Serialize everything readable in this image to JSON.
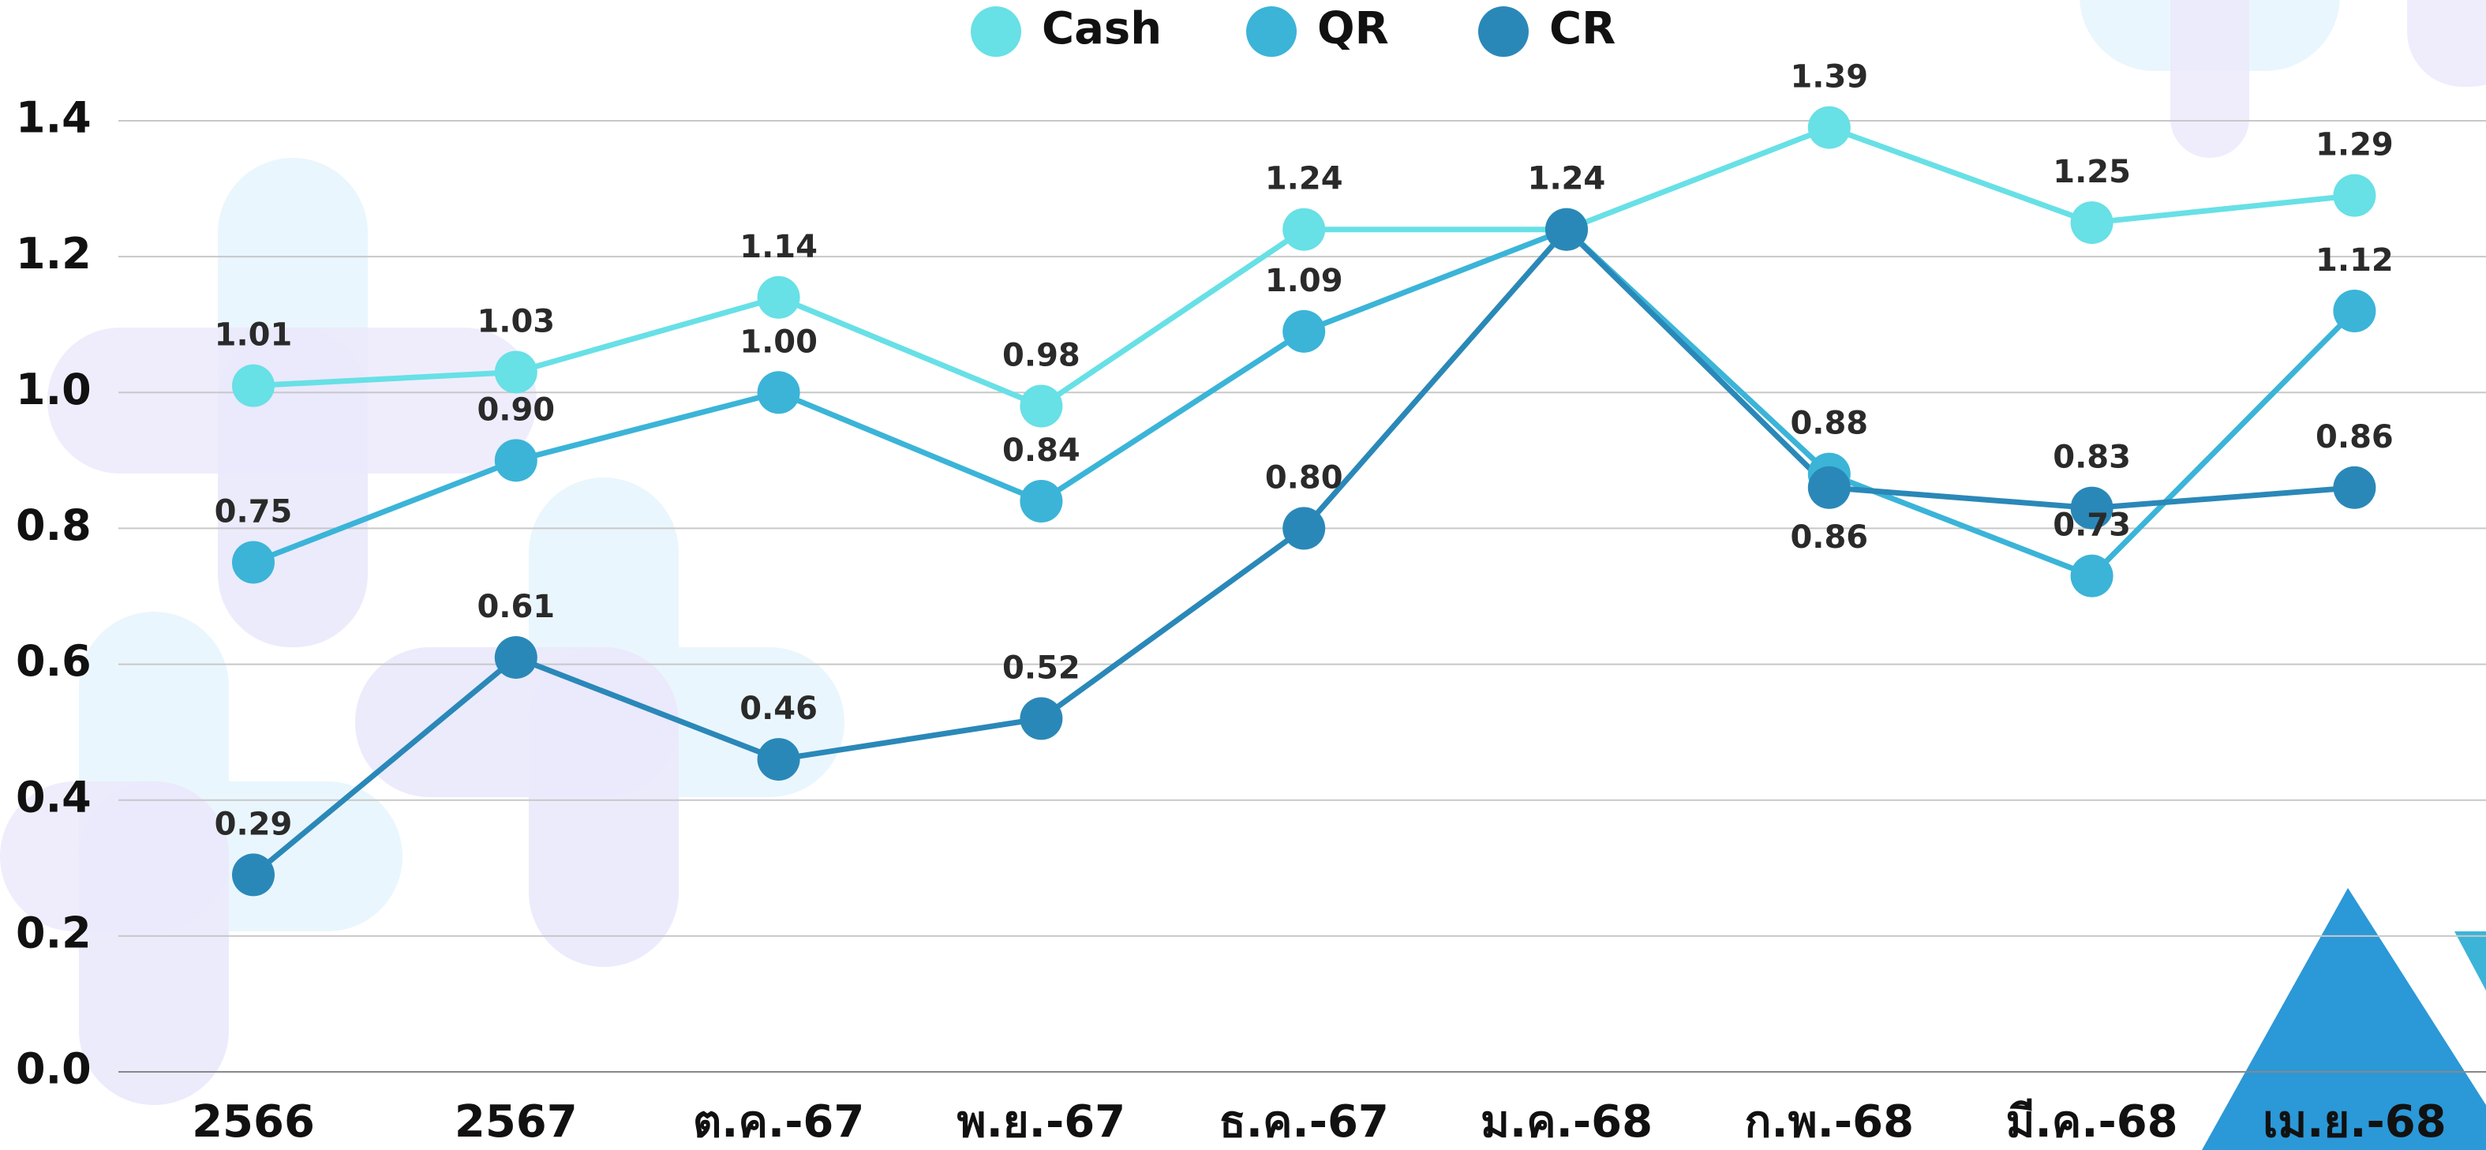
{
  "chart_data": {
    "type": "line",
    "categories": [
      "2566",
      "2567",
      "ต.ค.-67",
      "พ.ย.-67",
      "ธ.ค.-67",
      "ม.ค.-68",
      "ก.พ.-68",
      "มี.ค.-68",
      "เม.ย.-68"
    ],
    "series": [
      {
        "name": "Cash",
        "color": "#67e0e6",
        "values": [
          1.01,
          1.03,
          1.14,
          0.98,
          1.24,
          1.24,
          1.39,
          1.25,
          1.29
        ],
        "value_labels": [
          "1.01",
          "1.03",
          "1.14",
          "0.98",
          "1.24",
          "1.24",
          "1.39",
          "1.25",
          "1.29"
        ]
      },
      {
        "name": "QR",
        "color": "#3bb4d8",
        "values": [
          0.75,
          0.9,
          1.0,
          0.84,
          1.09,
          1.24,
          0.88,
          0.73,
          1.12
        ],
        "value_labels": [
          "0.75",
          "0.90",
          "1.00",
          "0.84",
          "1.09",
          "1.24",
          "0.88",
          "0.73",
          "1.12"
        ]
      },
      {
        "name": "CR",
        "color": "#2a88b8",
        "values": [
          0.29,
          0.61,
          0.46,
          0.52,
          0.8,
          1.24,
          0.86,
          0.83,
          0.86
        ],
        "value_labels": [
          "0.29",
          "0.61",
          "0.46",
          "0.52",
          "0.80",
          "1.24",
          "0.86",
          "0.83",
          "0.86"
        ]
      }
    ],
    "ylim": [
      0,
      1.4
    ],
    "yticks": [
      {
        "value": 0,
        "label": "0.0"
      },
      0.2,
      0.4,
      0.6,
      0.8,
      {
        "value": 1,
        "label": "1.0"
      },
      1.2,
      1.4
    ],
    "grid": true,
    "legend": "top"
  }
}
